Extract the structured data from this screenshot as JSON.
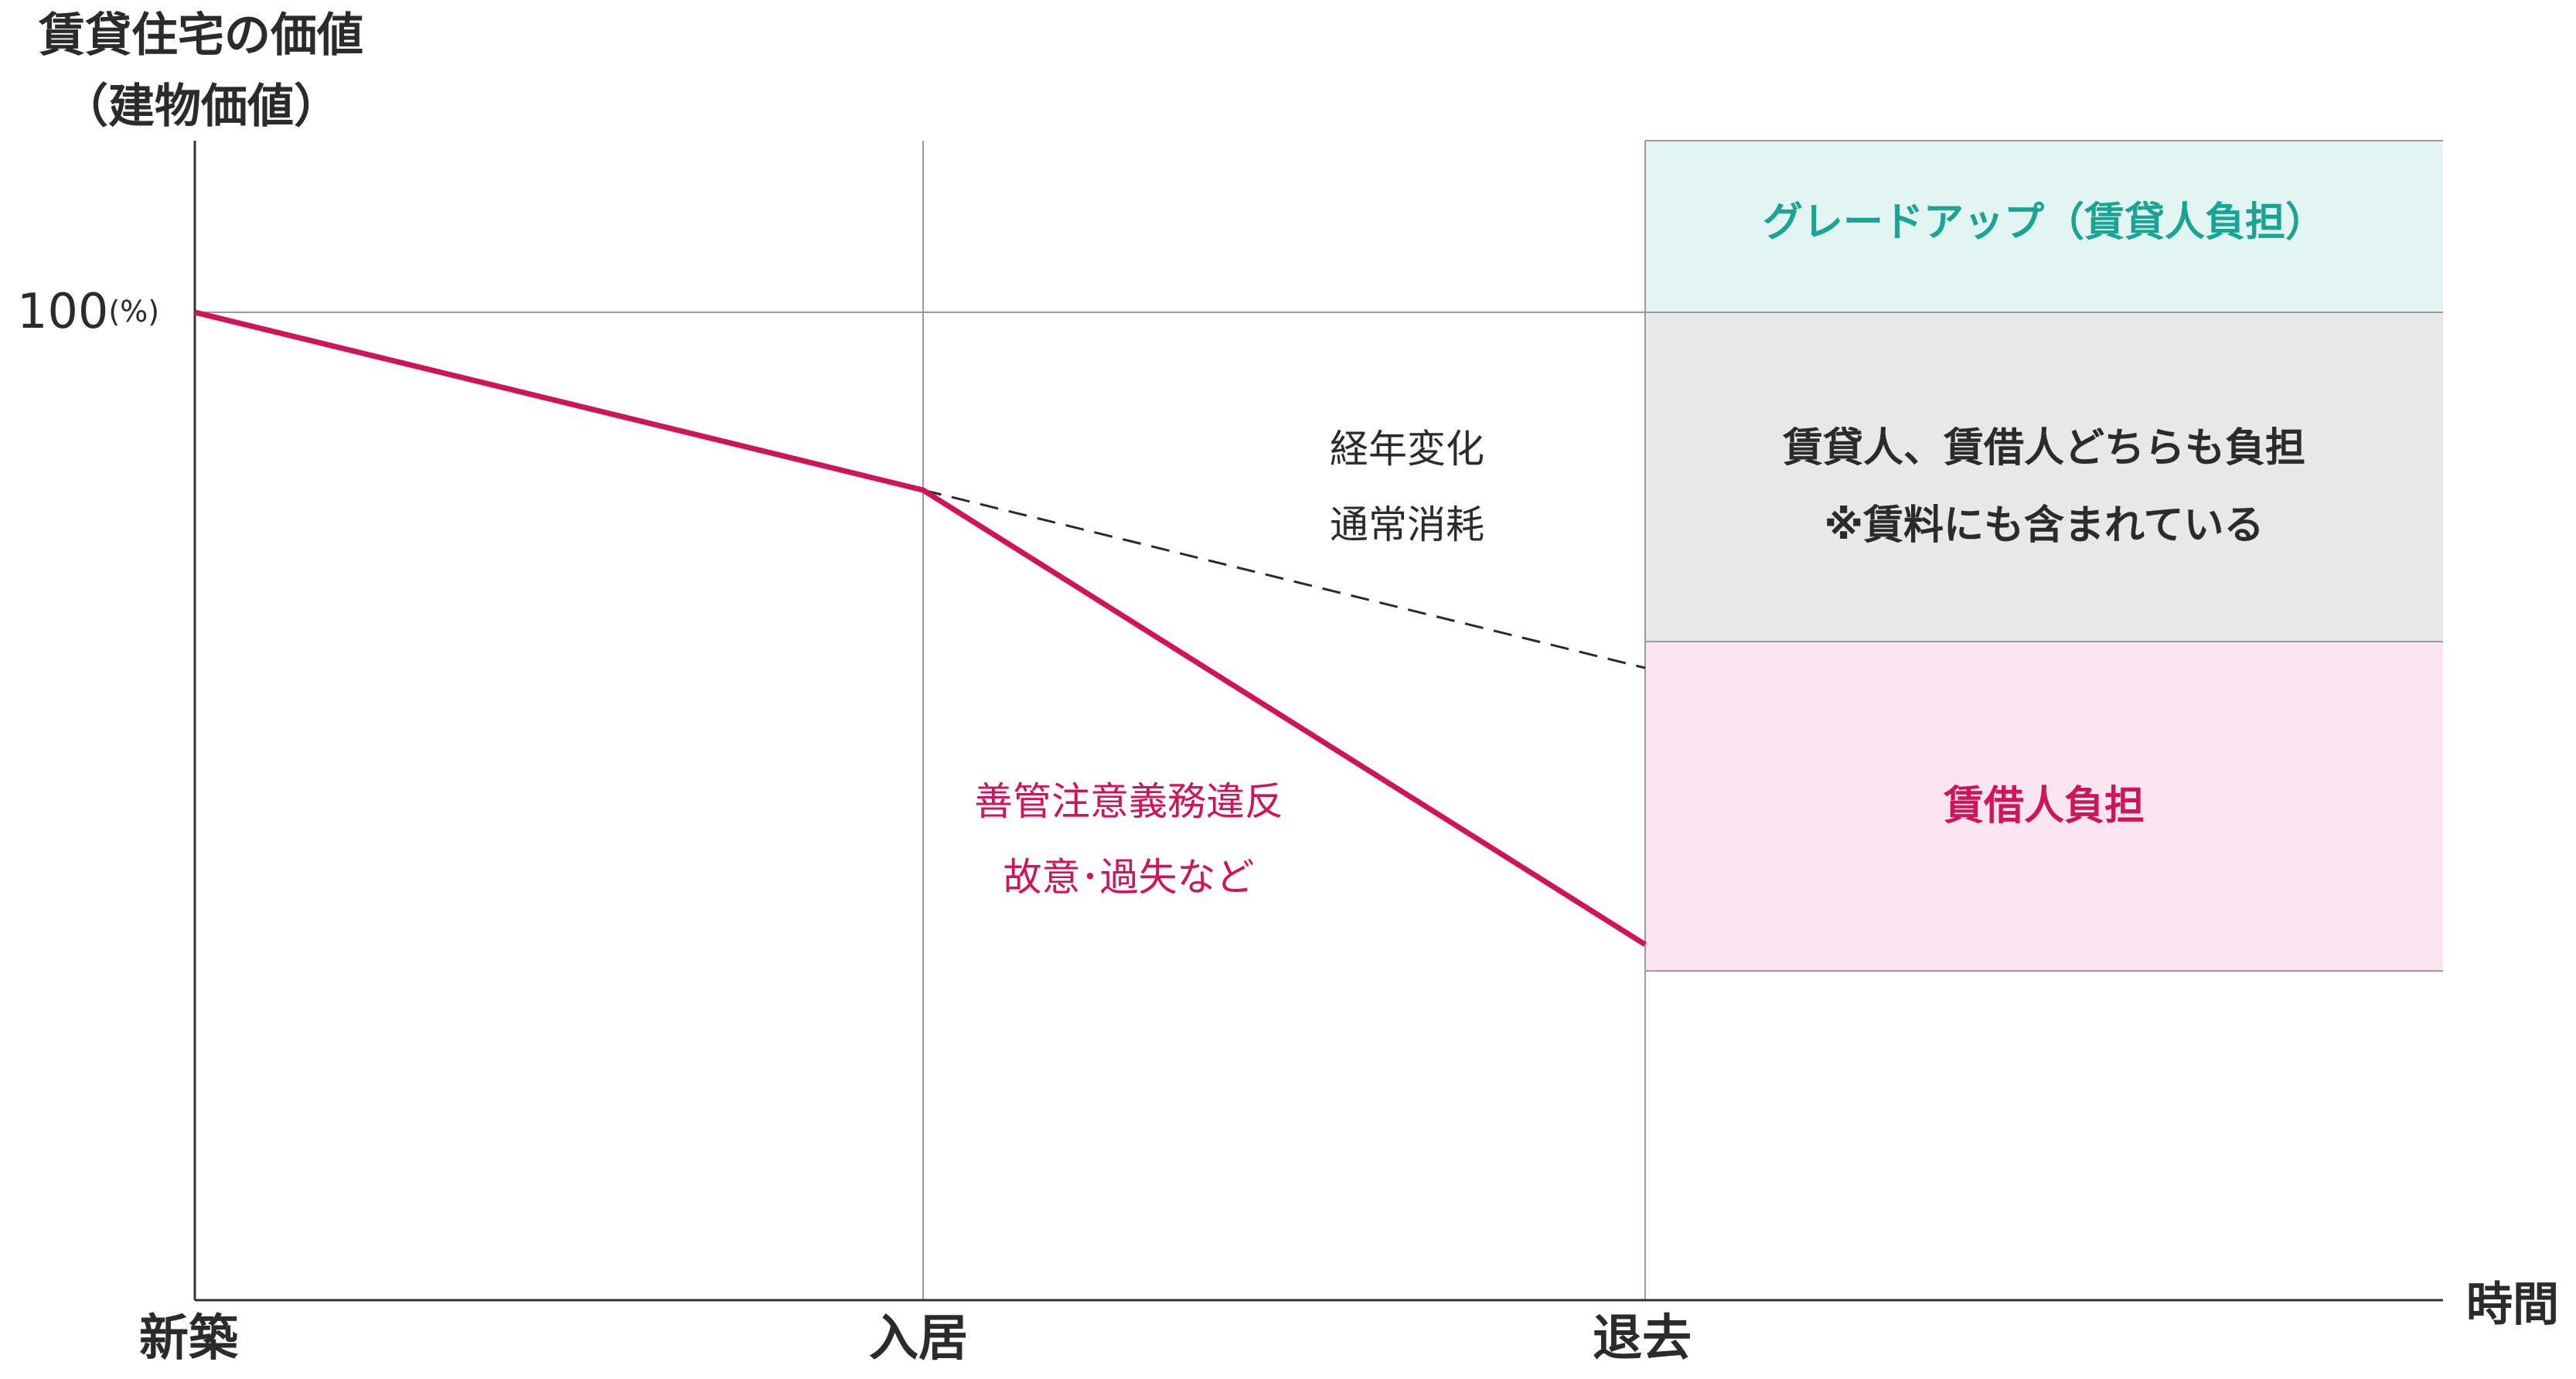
{
  "y_axis": {
    "title_line1": "賃貸住宅の価値",
    "title_line2": "（建物価値）",
    "tick_100": "100",
    "tick_unit": "(%)"
  },
  "x_axis": {
    "title": "時間",
    "tick_new": "新築",
    "tick_movein": "入居",
    "tick_moveout": "退去"
  },
  "zones": {
    "upgrade": "グレードアップ（賃貸人負担）",
    "shared_line1": "賃貸人、賃借人どちらも負担",
    "shared_line2": "※賃料にも含まれている",
    "tenant": "賃借人負担"
  },
  "annotations": {
    "aging_line1": "経年変化",
    "aging_line2": "通常消耗",
    "damage_line1": "善管注意義務違反",
    "damage_line2": "故意･過失など"
  },
  "colors": {
    "axis": "#333333",
    "grid": "#9a9a9a",
    "accent": "#d0145a",
    "dashed": "#2b2b2b",
    "upgrade_fill": "#e3f5f3",
    "upgrade_text": "#1aa495",
    "shared_fill": "#e8e8e8",
    "tenant_fill": "#fbe5ee",
    "tenant_text": "#d0145a"
  },
  "chart_data": {
    "type": "line",
    "x_stages": [
      "新築",
      "入居",
      "退去"
    ],
    "series": [
      {
        "values": [
          100,
          82,
          36
        ],
        "style": "solid"
      },
      {
        "values": [
          null,
          82,
          64
        ],
        "style": "dashed"
      }
    ],
    "ylim": [
      0,
      100
    ]
  }
}
